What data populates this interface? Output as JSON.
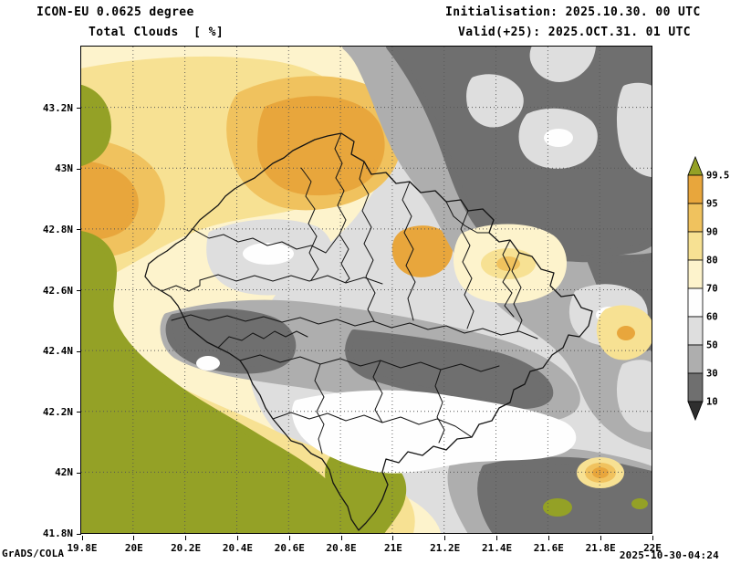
{
  "header": {
    "model_line": "ICON-EU 0.0625 degree",
    "variable_line": "Total Clouds  [ %]",
    "init_line": "Initialisation: 2025.10.30. 00 UTC",
    "valid_line": "Valid(+25): 2025.OCT.31. 01 UTC"
  },
  "footer": {
    "credit": "GrADS/COLA",
    "generated": "2025-10-30-04:24"
  },
  "map": {
    "x_ticks": [
      "19.8E",
      "20E",
      "20.2E",
      "20.4E",
      "20.6E",
      "20.8E",
      "21E",
      "21.2E",
      "21.4E",
      "21.6E",
      "21.8E",
      "22E"
    ],
    "y_ticks": [
      "41.8N",
      "42N",
      "42.2N",
      "42.4N",
      "42.6N",
      "42.8N",
      "43N",
      "43.2N"
    ]
  },
  "legend": {
    "labels": [
      "99.5",
      "95",
      "90",
      "80",
      "70",
      "60",
      "50",
      "30",
      "10"
    ],
    "colors": [
      "#94a126",
      "#e8a63c",
      "#f0c25e",
      "#f7e193",
      "#fdf3cc",
      "#fefefe",
      "#dedede",
      "#aeaeae",
      "#6f6f6f",
      "#2e2e2e"
    ]
  },
  "chart_data": {
    "type": "filled-contour-map",
    "title": "Total Clouds [%]",
    "model": "ICON-EU 0.0625 degree",
    "lon_range": [
      "19.8E",
      "22E"
    ],
    "lat_range": [
      "41.8N",
      "43.2N"
    ],
    "contour_levels": [
      10,
      30,
      50,
      60,
      70,
      80,
      90,
      95,
      99.5
    ],
    "units": "%"
  }
}
